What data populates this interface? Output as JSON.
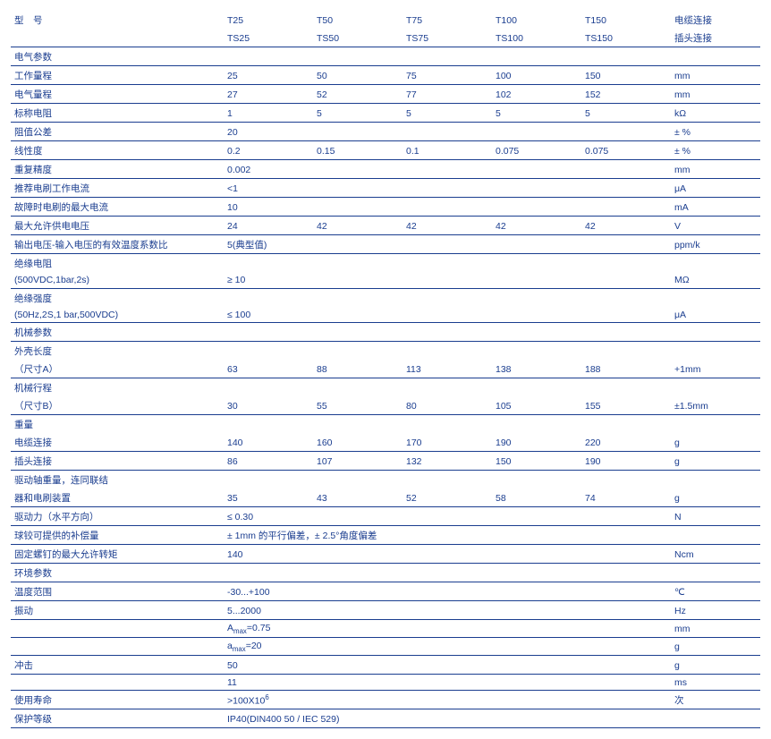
{
  "header": {
    "label_line1": "型 号",
    "label_line2": "",
    "cols_line1": [
      "T25",
      "T50",
      "T75",
      "T100",
      "T150"
    ],
    "cols_line2": [
      "TS25",
      "TS50",
      "TS75",
      "TS100",
      "TS150"
    ],
    "unit_line1": "电缆连接",
    "unit_line2": "插头连接"
  },
  "sections": {
    "electrical": "电气参数",
    "mechanical": "机械参数",
    "environment": "环境参数"
  },
  "rows": {
    "work_range": {
      "label": "工作量程",
      "v": [
        "25",
        "50",
        "75",
        "100",
        "150"
      ],
      "unit": "mm"
    },
    "elec_range": {
      "label": "电气量程",
      "v": [
        "27",
        "52",
        "77",
        "102",
        "152"
      ],
      "unit": "mm"
    },
    "nominal_res": {
      "label": "标称电阻",
      "v": [
        "1",
        "5",
        "5",
        "5",
        "5"
      ],
      "unit": "kΩ"
    },
    "res_tol": {
      "label": "阻值公差",
      "v": [
        "20",
        "",
        "",
        "",
        ""
      ],
      "unit": "± %"
    },
    "linearity": {
      "label": "线性度",
      "v": [
        "0.2",
        "0.15",
        "0.1",
        "0.075",
        "0.075"
      ],
      "unit": "± %"
    },
    "repeat": {
      "label": "重复精度",
      "v": [
        "0.002",
        "",
        "",
        "",
        ""
      ],
      "unit": "mm"
    },
    "brush_cur": {
      "label": "推荐电刷工作电流",
      "v": [
        "<1",
        "",
        "",
        "",
        ""
      ],
      "unit": "μA"
    },
    "fault_cur": {
      "label": "故障时电刷的最大电流",
      "v": [
        "10",
        "",
        "",
        "",
        ""
      ],
      "unit": "mA"
    },
    "max_volt": {
      "label": "最大允许供电电压",
      "v": [
        "24",
        "42",
        "42",
        "42",
        "42"
      ],
      "unit": "V"
    },
    "tempco": {
      "label": "输出电压-输入电压的有效温度系数比",
      "v": [
        "5(典型值)",
        "",
        "",
        "",
        ""
      ],
      "unit": "ppm/k"
    },
    "insul_res_l1": "绝缘电阻",
    "insul_res_l2": {
      "label": "(500VDC,1bar,2s)",
      "v": [
        "≥ 10",
        "",
        "",
        "",
        ""
      ],
      "unit": "MΩ"
    },
    "insul_str_l1": "绝缘强度",
    "insul_str_l2": {
      "label": "(50Hz,2S,1 bar,500VDC)",
      "v": [
        "≤ 100",
        "",
        "",
        "",
        ""
      ],
      "unit": "μA"
    },
    "housing_l1": "外壳长度",
    "housing_l2": {
      "label": "（尺寸A）",
      "v": [
        "63",
        "88",
        "113",
        "138",
        "188"
      ],
      "unit": "+1mm"
    },
    "stroke_l1": "机械行程",
    "stroke_l2": {
      "label": "（尺寸B）",
      "v": [
        "30",
        "55",
        "80",
        "105",
        "155"
      ],
      "unit": "±1.5mm"
    },
    "weight_l1": "重量",
    "weight_cable": {
      "label": "电缆连接",
      "v": [
        "140",
        "160",
        "170",
        "190",
        "220"
      ],
      "unit": "g"
    },
    "weight_plug": {
      "label": "插头连接",
      "v": [
        "86",
        "107",
        "132",
        "150",
        "190"
      ],
      "unit": "g"
    },
    "shaft_l1": "驱动轴重量，连同联结",
    "shaft_l2": {
      "label": "器和电刷装置",
      "v": [
        "35",
        "43",
        "52",
        "58",
        "74"
      ],
      "unit": "g"
    },
    "actuation": {
      "label": "驱动力（水平方向）",
      "v": [
        "≤ 0.30",
        "",
        "",
        "",
        ""
      ],
      "unit": "N"
    },
    "ball_joint": {
      "label": "球铰可提供的补偿量",
      "v": [
        "± 1mm 的平行偏差，± 2.5°角度偏差",
        "",
        "",
        "",
        ""
      ],
      "unit": ""
    },
    "screw": {
      "label": "固定螺钉的最大允许转矩",
      "v": [
        "140",
        "",
        "",
        "",
        ""
      ],
      "unit": "Ncm"
    },
    "temp": {
      "label": "温度范围",
      "v": [
        "-30...+100",
        "",
        "",
        "",
        ""
      ],
      "unit": "℃"
    },
    "vib_l1": {
      "label": "振动",
      "v": [
        "5...2000",
        "",
        "",
        "",
        ""
      ],
      "unit": "Hz"
    },
    "vib_l2": {
      "label": "",
      "v_html": "A<sub>max</sub>=0.75",
      "unit": "mm"
    },
    "vib_l3": {
      "label": "",
      "v_html": "a<sub>max</sub>=20",
      "unit": "g"
    },
    "shock_l1": {
      "label": "冲击",
      "v": [
        "50",
        "",
        "",
        "",
        ""
      ],
      "unit": "g"
    },
    "shock_l2": {
      "label": "",
      "v": [
        "11",
        "",
        "",
        "",
        ""
      ],
      "unit": "ms"
    },
    "life": {
      "label": "使用寿命",
      "v_html": ">100X10<sup>6</sup>",
      "unit": "次"
    },
    "protection": {
      "label": "保护等级",
      "v": [
        "IP40(DIN400 50 / IEC 529)",
        "",
        "",
        "",
        ""
      ],
      "unit": ""
    }
  }
}
